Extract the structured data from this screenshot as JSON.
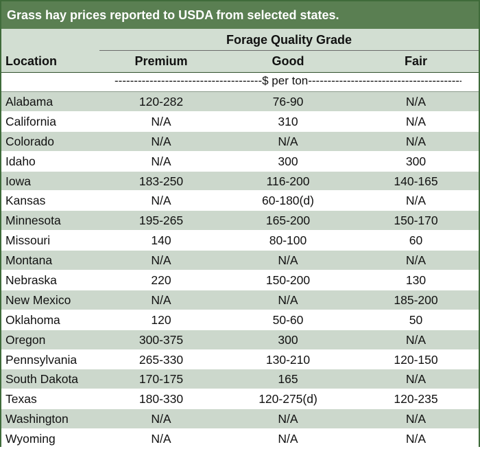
{
  "title": "Grass hay prices reported to USDA from selected states.",
  "group_header": "Forage Quality Grade",
  "columns": {
    "location": "Location",
    "premium": "Premium",
    "good": "Good",
    "fair": "Fair"
  },
  "units": "--------------------------------------$ per ton----------------------------------------",
  "colors": {
    "title_bar": "#5a7f52",
    "border": "#3f6b3a",
    "stripe": "#ccd8cc",
    "header_bg": "#d2ded2"
  },
  "rows": [
    {
      "location": "Alabama",
      "premium": "120-282",
      "good": "76-90",
      "fair": "N/A"
    },
    {
      "location": "California",
      "premium": "N/A",
      "good": "310",
      "fair": "N/A"
    },
    {
      "location": "Colorado",
      "premium": "N/A",
      "good": "N/A",
      "fair": "N/A"
    },
    {
      "location": "Idaho",
      "premium": "N/A",
      "good": "300",
      "fair": "300"
    },
    {
      "location": "Iowa",
      "premium": "183-250",
      "good": "116-200",
      "fair": "140-165"
    },
    {
      "location": "Kansas",
      "premium": "N/A",
      "good": "60-180(d)",
      "fair": "N/A"
    },
    {
      "location": "Minnesota",
      "premium": "195-265",
      "good": "165-200",
      "fair": "150-170"
    },
    {
      "location": "Missouri",
      "premium": "140",
      "good": "80-100",
      "fair": "60"
    },
    {
      "location": "Montana",
      "premium": "N/A",
      "good": "N/A",
      "fair": "N/A"
    },
    {
      "location": "Nebraska",
      "premium": "220",
      "good": "150-200",
      "fair": "130"
    },
    {
      "location": "New Mexico",
      "premium": "N/A",
      "good": "N/A",
      "fair": "185-200"
    },
    {
      "location": "Oklahoma",
      "premium": "120",
      "good": "50-60",
      "fair": "50"
    },
    {
      "location": "Oregon",
      "premium": "300-375",
      "good": "300",
      "fair": "N/A"
    },
    {
      "location": "Pennsylvania",
      "premium": "265-330",
      "good": "130-210",
      "fair": "120-150"
    },
    {
      "location": "South Dakota",
      "premium": "170-175",
      "good": "165",
      "fair": "N/A"
    },
    {
      "location": "Texas",
      "premium": "180-330",
      "good": "120-275(d)",
      "fair": "120-235"
    },
    {
      "location": "Washington",
      "premium": "N/A",
      "good": "N/A",
      "fair": "N/A"
    },
    {
      "location": "Wyoming",
      "premium": "N/A",
      "good": "N/A",
      "fair": "N/A"
    }
  ]
}
